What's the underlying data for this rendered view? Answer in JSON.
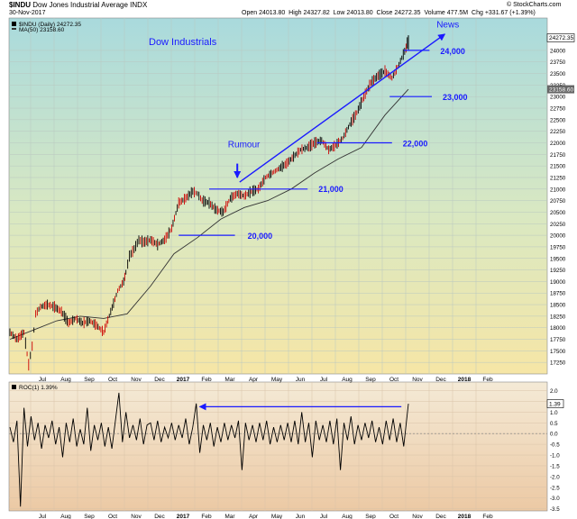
{
  "header": {
    "symbol": "$INDU",
    "name": "Dow Jones Industrial Average INDX",
    "date": "30-Nov-2017",
    "open_label": "Open",
    "open_value": "24013.80",
    "high_label": "High",
    "high_value": "24327.82",
    "low_label": "Low",
    "low_value": "24013.80",
    "close_label": "Close",
    "close_value": "24272.35",
    "volume_label": "Volume",
    "volume_value": "477.5M",
    "chg_label": "Chg",
    "chg_value": "+331.67 (+1.39%)",
    "watermark": "© StockCharts.com"
  },
  "main_legend": {
    "price_label": "$INDU (Daily) 24272.35",
    "ma_label": "MA(50) 23158.60"
  },
  "roc_legend": "ROC(1) 1.39%",
  "colors": {
    "up_bar": "#000000",
    "down_bar": "#cc0000",
    "ma_line": "#333333",
    "annotation": "#1a1aff",
    "price_tag_bg": "#ffffff",
    "ma_tag_bg": "#666666"
  },
  "chart_data": [
    {
      "type": "line",
      "panel": "price",
      "ylim": [
        17000,
        24700
      ],
      "y_ticks": [
        17250,
        17500,
        17750,
        18000,
        18250,
        18500,
        18750,
        19000,
        19250,
        19500,
        19750,
        20000,
        20250,
        20500,
        20750,
        21000,
        21250,
        21500,
        21750,
        22000,
        22250,
        22500,
        22750,
        23000,
        23250,
        23500,
        23750,
        24000
      ],
      "y_tick_labels": [
        "17250",
        "17500",
        "17750",
        "18000",
        "18250",
        "18500",
        "18750",
        "19000",
        "19250",
        "19500",
        "19750",
        "20000",
        "20250",
        "20500",
        "20750",
        "21000",
        "21250",
        "21500",
        "21750",
        "22000",
        "22250",
        "22500",
        "22750",
        "23000",
        "23250",
        "23500",
        "23750",
        "24000"
      ],
      "x_labels": [
        "Jul",
        "Aug",
        "Sep",
        "Oct",
        "Nov",
        "Dec",
        "2017",
        "Feb",
        "Mar",
        "Apr",
        "May",
        "Jun",
        "Jul",
        "Aug",
        "Sep",
        "Oct",
        "Nov",
        "Dec",
        "2018",
        "Feb"
      ],
      "x_label_month_index": [
        1,
        2,
        3,
        4,
        5,
        6,
        7,
        8,
        9,
        10,
        11,
        12,
        13,
        14,
        15,
        16,
        17,
        18,
        19,
        20
      ],
      "price_tag": "24272.35",
      "ma_tag": "23158.60",
      "series": [
        {
          "name": "$INDU (Daily)",
          "x_month_index": [
            0.0,
            0.3,
            0.6,
            0.8,
            0.95,
            1.1,
            1.3,
            1.6,
            1.9,
            2.2,
            2.5,
            2.8,
            3.1,
            3.4,
            3.7,
            4.0,
            4.3,
            4.6,
            4.85,
            4.95,
            5.1,
            5.3,
            5.5,
            5.7,
            6.0,
            6.3,
            6.6,
            6.9,
            7.2,
            7.5,
            7.8,
            8.0,
            8.2,
            8.5,
            8.8,
            9.1,
            9.4,
            9.7,
            10.0,
            10.3,
            10.6,
            10.9,
            11.2,
            11.5,
            11.8,
            12.1,
            12.4,
            12.7,
            13.0,
            13.3,
            13.6,
            13.9,
            14.2,
            14.5,
            14.8,
            15.1,
            15.4,
            15.7,
            16.0,
            16.3,
            16.6,
            16.9,
            17.0
          ],
          "values": [
            17900,
            17750,
            17900,
            17200,
            17600,
            18300,
            18450,
            18500,
            18450,
            18350,
            18100,
            18200,
            18100,
            18150,
            18050,
            17900,
            18350,
            18800,
            19000,
            19200,
            19550,
            19700,
            19900,
            19850,
            19900,
            19800,
            19900,
            20150,
            20700,
            20800,
            20950,
            20900,
            20750,
            20700,
            20550,
            20500,
            20800,
            20900,
            20850,
            20950,
            21000,
            21250,
            21350,
            21450,
            21550,
            21700,
            21850,
            21900,
            22000,
            22050,
            21850,
            21950,
            22100,
            22400,
            22650,
            23000,
            23300,
            23450,
            23550,
            23400,
            23700,
            24050,
            24272.35
          ]
        },
        {
          "name": "MA(50)",
          "x_month_index": [
            0.0,
            1.0,
            2.0,
            3.0,
            4.0,
            5.0,
            6.0,
            7.0,
            8.0,
            9.0,
            10.0,
            11.0,
            12.0,
            13.0,
            14.0,
            15.0,
            16.0,
            17.0
          ],
          "values": [
            17750,
            17950,
            18150,
            18250,
            18200,
            18300,
            18900,
            19600,
            19950,
            20350,
            20600,
            20750,
            21000,
            21350,
            21650,
            21900,
            22600,
            23158.6
          ]
        }
      ],
      "annotations": {
        "title": "Dow Industrials",
        "rumour": "Rumour",
        "news": "News",
        "levels": [
          {
            "label": "20,000",
            "value": 20000,
            "from_month": 7.2,
            "to_month": 9.6
          },
          {
            "label": "21,000",
            "value": 21000,
            "from_month": 8.5,
            "to_month": 12.7
          },
          {
            "label": "22,000",
            "value": 22000,
            "from_month": 13.1,
            "to_month": 16.3
          },
          {
            "label": "23,000",
            "value": 23000,
            "from_month": 16.2,
            "to_month": 18.0
          },
          {
            "label": "24,000",
            "value": 24000,
            "from_month": 16.8,
            "to_month": 17.9
          }
        ]
      }
    },
    {
      "type": "line",
      "panel": "roc",
      "name": "ROC(1)",
      "ylim": [
        -3.6,
        2.4
      ],
      "y_ticks": [
        2.0,
        1.5,
        1.0,
        0.5,
        0.0,
        -0.5,
        -1.0,
        -1.5,
        -2.0,
        -2.5,
        -3.0,
        -3.5
      ],
      "y_tick_labels": [
        "2.0",
        "1.5",
        "1.0",
        "0.5",
        "0.0",
        "-0.5",
        "-1.0",
        "-1.5",
        "-2.0",
        "-2.5",
        "-3.0",
        "-3.5"
      ],
      "last_value_tag": "1.39",
      "x_labels": [
        "Jul",
        "Aug",
        "Sep",
        "Oct",
        "Nov",
        "Dec",
        "2017",
        "Feb",
        "Mar",
        "Apr",
        "May",
        "Jun",
        "Jul",
        "Aug",
        "Sep",
        "Oct",
        "Nov",
        "Dec",
        "2018",
        "Feb"
      ],
      "x_label_month_index": [
        1,
        2,
        3,
        4,
        5,
        6,
        7,
        8,
        9,
        10,
        11,
        12,
        13,
        14,
        15,
        16,
        17,
        18,
        19,
        20
      ],
      "x_month_index": [
        0.0,
        0.15,
        0.3,
        0.45,
        0.6,
        0.75,
        0.9,
        1.05,
        1.2,
        1.35,
        1.5,
        1.65,
        1.8,
        1.95,
        2.1,
        2.25,
        2.4,
        2.55,
        2.7,
        2.85,
        3.0,
        3.15,
        3.3,
        3.45,
        3.6,
        3.75,
        3.9,
        4.05,
        4.2,
        4.35,
        4.5,
        4.65,
        4.8,
        4.95,
        5.1,
        5.25,
        5.4,
        5.55,
        5.7,
        5.85,
        6.0,
        6.15,
        6.3,
        6.45,
        6.6,
        6.75,
        6.9,
        7.05,
        7.2,
        7.35,
        7.5,
        7.65,
        7.8,
        7.95,
        8.1,
        8.25,
        8.4,
        8.55,
        8.7,
        8.85,
        9.0,
        9.15,
        9.3,
        9.45,
        9.6,
        9.75,
        9.9,
        10.05,
        10.2,
        10.35,
        10.5,
        10.65,
        10.8,
        10.95,
        11.1,
        11.25,
        11.4,
        11.55,
        11.7,
        11.85,
        12.0,
        12.15,
        12.3,
        12.45,
        12.6,
        12.75,
        12.9,
        13.05,
        13.2,
        13.35,
        13.5,
        13.65,
        13.8,
        13.95,
        14.1,
        14.25,
        14.4,
        14.55,
        14.7,
        14.85,
        15.0,
        15.15,
        15.3,
        15.45,
        15.6,
        15.75,
        15.9,
        16.05,
        16.2,
        16.35,
        16.5,
        16.65,
        16.8,
        16.95,
        17.0
      ],
      "values": [
        0.3,
        -0.4,
        0.6,
        -3.4,
        1.2,
        -0.6,
        0.8,
        -0.3,
        0.5,
        -0.7,
        0.4,
        -0.2,
        0.6,
        -0.5,
        0.3,
        -1.1,
        0.5,
        -0.4,
        0.7,
        -0.6,
        0.2,
        -0.5,
        1.2,
        -0.8,
        0.4,
        -0.3,
        0.5,
        -0.6,
        0.3,
        -0.7,
        0.6,
        1.9,
        -0.4,
        1.0,
        -0.2,
        0.4,
        -0.3,
        0.7,
        -0.5,
        0.4,
        0.5,
        -0.3,
        0.6,
        -0.4,
        0.3,
        -0.2,
        0.5,
        -0.3,
        0.4,
        -0.2,
        0.7,
        -0.5,
        0.3,
        1.4,
        -0.9,
        0.4,
        -0.3,
        0.5,
        -0.6,
        0.3,
        -0.4,
        0.5,
        -0.3,
        0.4,
        -0.2,
        0.6,
        -1.7,
        0.5,
        -0.3,
        0.4,
        -0.4,
        0.5,
        -0.3,
        0.6,
        -0.5,
        0.3,
        -0.4,
        0.4,
        -0.3,
        0.5,
        -0.4,
        0.6,
        -0.5,
        1.0,
        -0.4,
        0.5,
        -1.1,
        0.6,
        -0.3,
        0.4,
        -0.4,
        0.6,
        -0.5,
        0.7,
        -1.7,
        0.5,
        -0.3,
        0.8,
        -0.5,
        0.4,
        -0.3,
        0.5,
        -0.2,
        0.6,
        -0.4,
        0.3,
        -0.5,
        0.6,
        -0.3,
        0.7,
        -0.4,
        0.5,
        -0.6,
        0.9,
        1.39
      ],
      "annotation_arrow": {
        "from_month": 16.7,
        "to_month": 8.1,
        "value": 1.25
      }
    }
  ]
}
